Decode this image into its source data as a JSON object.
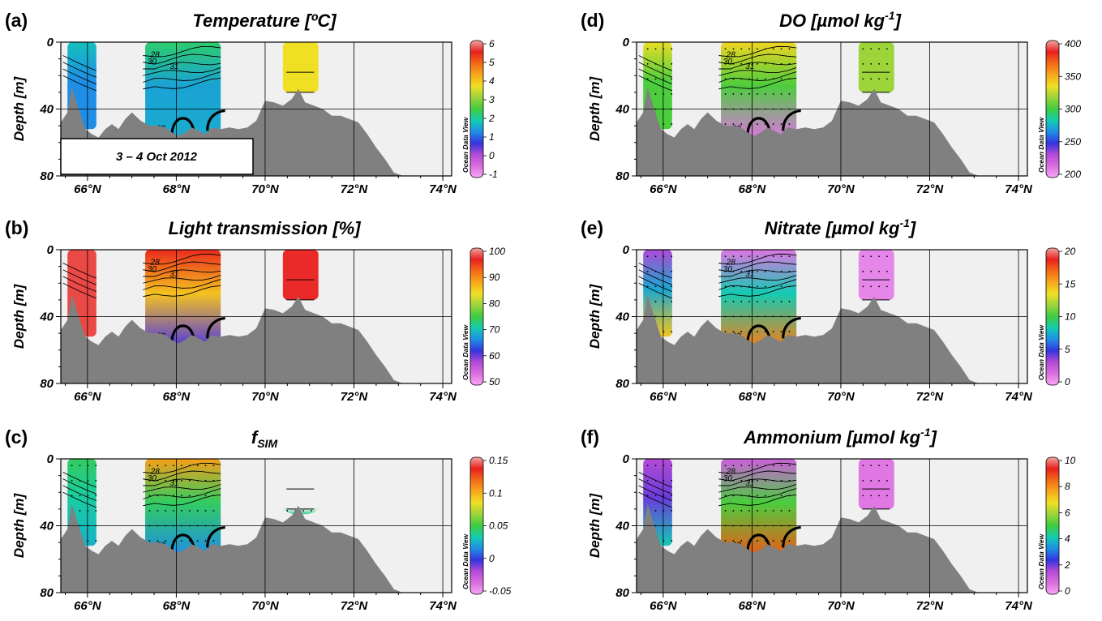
{
  "shared": {
    "ylabel": "Depth [m]",
    "x_ticks": [
      66,
      68,
      70,
      72,
      74
    ],
    "x_tick_labels": [
      "66°N",
      "68°N",
      "70°N",
      "72°N",
      "74°N"
    ],
    "y_ticks": [
      0,
      40,
      80
    ],
    "y_tick_labels": [
      "0",
      "40",
      "80"
    ],
    "xlim": [
      65.4,
      74.2
    ],
    "ylim": [
      80,
      0
    ],
    "colorbar_brand": "Ocean Data View",
    "date_label": "3 – 4 Oct 2012",
    "bathymetry": {
      "lat": [
        65.4,
        65.55,
        65.65,
        65.8,
        65.95,
        66.1,
        66.25,
        66.4,
        66.55,
        66.7,
        66.85,
        67.0,
        67.2,
        67.4,
        67.6,
        67.75,
        67.9,
        68.05,
        68.2,
        68.35,
        68.5,
        68.65,
        68.8,
        69.0,
        69.2,
        69.4,
        69.6,
        69.8,
        70.0,
        70.2,
        70.4,
        70.6,
        70.75,
        70.9,
        71.1,
        71.3,
        71.5,
        71.7,
        71.9,
        72.1,
        72.3,
        72.5,
        72.7,
        72.9,
        73.1
      ],
      "depth": [
        48,
        42,
        27,
        40,
        52,
        55,
        57,
        52,
        49,
        52,
        46,
        42,
        47,
        50,
        50,
        51,
        54,
        56,
        54,
        51,
        53,
        55,
        51,
        52,
        51,
        52,
        51,
        47,
        35,
        36,
        38,
        34,
        28,
        36,
        38,
        40,
        44,
        44,
        46,
        48,
        55,
        63,
        70,
        78,
        80
      ]
    },
    "sections": [
      {
        "lat_range": [
          65.55,
          66.2
        ],
        "depth_max": 52
      },
      {
        "lat_range": [
          67.3,
          69.0
        ],
        "depth_max": 58
      },
      {
        "lat_range": [
          70.4,
          71.2
        ],
        "depth_max": 30
      }
    ],
    "contour_labels": [
      "28",
      "30",
      "31",
      "33"
    ]
  },
  "panels": [
    {
      "letter": "(a)",
      "title": "Temperature [ºC]",
      "colorbar": {
        "ticks": [
          "6",
          "5",
          "4",
          "3",
          "2",
          "1",
          "0",
          "-1"
        ]
      },
      "chart_data": {
        "type": "heatmap",
        "variable": "Temperature",
        "unit": "°C",
        "clim": [
          -1.5,
          6
        ],
        "sections": [
          {
            "surface": 1.5,
            "mid": 1.0,
            "deep": 1.0
          },
          {
            "surface": 2.0,
            "mid": 1.2,
            "deep": 1.3
          },
          {
            "surface": 3.5,
            "mid": 3.5,
            "deep": 3.5
          }
        ]
      }
    },
    {
      "letter": "(b)",
      "title": "Light transmission [%]",
      "colorbar": {
        "ticks": [
          "100",
          "90",
          "80",
          "70",
          "60",
          "50"
        ]
      },
      "chart_data": {
        "type": "heatmap",
        "variable": "Light transmission",
        "unit": "%",
        "clim": [
          48,
          100
        ],
        "sections": [
          {
            "surface": 97,
            "mid": 97,
            "deep": 97
          },
          {
            "surface": 95,
            "mid": 85,
            "deep": 60
          },
          {
            "surface": 96,
            "mid": 96,
            "deep": 96
          }
        ]
      }
    },
    {
      "letter": "(c)",
      "title": "f",
      "title_sub": "SIM",
      "colorbar": {
        "ticks": [
          "0.15",
          "0.1",
          "0.05",
          "0",
          "-0.05"
        ]
      },
      "chart_data": {
        "type": "heatmap",
        "variable": "f_SIM",
        "unit": "",
        "clim": [
          -0.06,
          0.15
        ],
        "sections": [
          {
            "surface": 0.04,
            "mid": 0.03,
            "deep": 0.02
          },
          {
            "surface": 0.1,
            "mid": 0.04,
            "deep": 0.01
          },
          {
            "surface": null,
            "mid": null,
            "deep": 0.035
          }
        ]
      }
    },
    {
      "letter": "(d)",
      "title": "DO [µmol kg",
      "title_sup": "-1",
      "title_end": "]",
      "colorbar": {
        "ticks": [
          "400",
          "350",
          "300",
          "250",
          "200"
        ]
      },
      "chart_data": {
        "type": "heatmap",
        "variable": "DO",
        "unit": "µmol kg-1",
        "clim": [
          195,
          400
        ],
        "sections": [
          {
            "surface": 330,
            "mid": 300,
            "deep": 300
          },
          {
            "surface": 335,
            "mid": 300,
            "deep": 210
          },
          {
            "surface": 315,
            "mid": 315,
            "deep": 315
          }
        ]
      }
    },
    {
      "letter": "(e)",
      "title": "Nitrate [µmol kg",
      "title_sup": "-1",
      "title_end": "]",
      "colorbar": {
        "ticks": [
          "20",
          "15",
          "10",
          "5",
          "0"
        ]
      },
      "chart_data": {
        "type": "heatmap",
        "variable": "Nitrate",
        "unit": "µmol kg-1",
        "clim": [
          -0.5,
          20
        ],
        "sections": [
          {
            "surface": 3,
            "mid": 7,
            "deep": 14
          },
          {
            "surface": 1,
            "mid": 8,
            "deep": 16
          },
          {
            "surface": 0.5,
            "mid": 0.5,
            "deep": 0.5
          }
        ]
      }
    },
    {
      "letter": "(f)",
      "title": "Ammonium [µmol kg",
      "title_sup": "-1",
      "title_end": "]",
      "colorbar": {
        "ticks": [
          "10",
          "8",
          "6",
          "4",
          "2",
          "0"
        ]
      },
      "chart_data": {
        "type": "heatmap",
        "variable": "Ammonium",
        "unit": "µmol kg-1",
        "clim": [
          -0.2,
          10
        ],
        "sections": [
          {
            "surface": 1.5,
            "mid": 2,
            "deep": 4
          },
          {
            "surface": 1,
            "mid": 5,
            "deep": 8.5
          },
          {
            "surface": 0.5,
            "mid": 0.5,
            "deep": 0.5
          }
        ]
      }
    }
  ],
  "colors": {
    "land": "#808080",
    "plot_bg": "#f0f0f0",
    "colormap": [
      "#f5a8f5",
      "#dc6ee0",
      "#b44bd6",
      "#3434e0",
      "#1f8ee6",
      "#13cdb2",
      "#3fcc3f",
      "#9ad43b",
      "#f0e024",
      "#f7a81b",
      "#f36a16",
      "#e8201e",
      "#f2a5a0"
    ]
  }
}
